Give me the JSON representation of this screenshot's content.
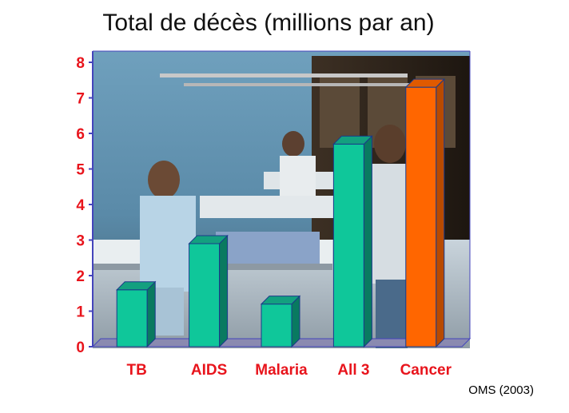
{
  "title": "Total de décès (millions par an)",
  "source": "OMS (2003)",
  "photo_description": "hospital-ward-photo",
  "colors": {
    "bar_main": "#0fc79a",
    "bar_main_side": "#097a60",
    "bar_main_top": "#13a07f",
    "bar_accent": "#ff6600",
    "bar_accent_side": "#b84a00",
    "bar_accent_top": "#e05a00",
    "labels": "#e8141c",
    "axis": "#4444bb",
    "floor": "#8a8ab0"
  },
  "chart_data": {
    "type": "bar",
    "title": "Total de décès (millions par an)",
    "categories": [
      "TB",
      "AIDS",
      "Malaria",
      "All 3",
      "Cancer"
    ],
    "values": [
      1.6,
      2.9,
      1.2,
      5.7,
      7.3
    ],
    "highlight_index": 4,
    "ylim": [
      0,
      8
    ],
    "yticks": [
      "0",
      "1",
      "2",
      "3",
      "4",
      "5",
      "6",
      "7",
      "8"
    ],
    "xlabel": "",
    "ylabel": "",
    "grid": false,
    "legend": "none"
  }
}
